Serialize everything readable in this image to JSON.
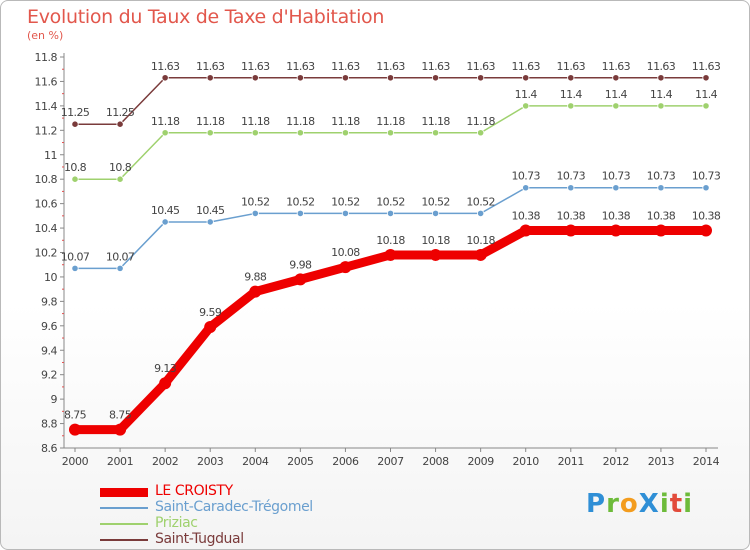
{
  "header": {
    "title": "Evolution du Taux de Taxe d'Habitation",
    "unit": "(en %)"
  },
  "logo": {
    "text": "ProXiti",
    "letters": [
      {
        "ch": "P",
        "color": "#2f8fd6"
      },
      {
        "ch": "r",
        "color": "#6dbb3a"
      },
      {
        "ch": "o",
        "color": "#f39c1e"
      },
      {
        "ch": "X",
        "color": "#2f8fd6"
      },
      {
        "ch": "i",
        "color": "#6dbb3a"
      },
      {
        "ch": "t",
        "color": "#e24b3b"
      },
      {
        "ch": "i",
        "color": "#6dbb3a"
      }
    ]
  },
  "chart_data": {
    "type": "line",
    "title": "Evolution du Taux de Taxe d'Habitation",
    "ylabel": "(en %)",
    "xlabel": "",
    "x": [
      "2000",
      "2001",
      "2002",
      "2003",
      "2004",
      "2005",
      "2006",
      "2007",
      "2008",
      "2009",
      "2010",
      "2011",
      "2012",
      "2013",
      "2014"
    ],
    "ylim": [
      8.6,
      11.8
    ],
    "yticks": [
      "8.6",
      "8.8",
      "9",
      "9.2",
      "9.4",
      "9.6",
      "9.8",
      "10",
      "10.2",
      "10.4",
      "10.6",
      "10.8",
      "11",
      "11.2",
      "11.4",
      "11.6",
      "11.8"
    ],
    "grid": false,
    "legend_position": "bottom-left",
    "series": [
      {
        "name": "LE CROISTY",
        "color": "#ee0000",
        "emphasis": true,
        "values": [
          8.75,
          8.75,
          9.13,
          9.59,
          9.88,
          9.98,
          10.08,
          10.18,
          10.18,
          10.18,
          10.38,
          10.38,
          10.38,
          10.38,
          10.38
        ],
        "labels": [
          "8.75",
          "8.75",
          "9.13",
          "9.59",
          "9.88",
          "9.98",
          "10.08",
          "10.18",
          "10.18",
          "10.18",
          "10.38",
          "10.38",
          "10.38",
          "10.38",
          "10.38"
        ]
      },
      {
        "name": "Saint-Caradec-Trégomel",
        "color": "#6a9fcf",
        "emphasis": false,
        "values": [
          10.07,
          10.07,
          10.45,
          10.45,
          10.52,
          10.52,
          10.52,
          10.52,
          10.52,
          10.52,
          10.73,
          10.73,
          10.73,
          10.73,
          10.73
        ],
        "labels": [
          "10.07",
          "10.07",
          "10.45",
          "10.45",
          "10.52",
          "10.52",
          "10.52",
          "10.52",
          "10.52",
          "10.52",
          "10.73",
          "10.73",
          "10.73",
          "10.73",
          "10.73"
        ]
      },
      {
        "name": "Priziac",
        "color": "#9fd16e",
        "emphasis": false,
        "values": [
          10.8,
          10.8,
          11.18,
          11.18,
          11.18,
          11.18,
          11.18,
          11.18,
          11.18,
          11.18,
          11.4,
          11.4,
          11.4,
          11.4,
          11.4
        ],
        "labels": [
          "10.8",
          "10.8",
          "11.18",
          "11.18",
          "11.18",
          "11.18",
          "11.18",
          "11.18",
          "11.18",
          "11.18",
          "11.4",
          "11.4",
          "11.4",
          "11.4",
          "11.4"
        ]
      },
      {
        "name": "Saint-Tugdual",
        "color": "#7a3b3b",
        "emphasis": false,
        "values": [
          11.25,
          11.25,
          11.63,
          11.63,
          11.63,
          11.63,
          11.63,
          11.63,
          11.63,
          11.63,
          11.63,
          11.63,
          11.63,
          11.63,
          11.63
        ],
        "labels": [
          "11.25",
          "11.25",
          "11.63",
          "11.63",
          "11.63",
          "11.63",
          "11.63",
          "11.63",
          "11.63",
          "11.63",
          "11.63",
          "11.63",
          "11.63",
          "11.63",
          "11.63"
        ]
      }
    ]
  }
}
